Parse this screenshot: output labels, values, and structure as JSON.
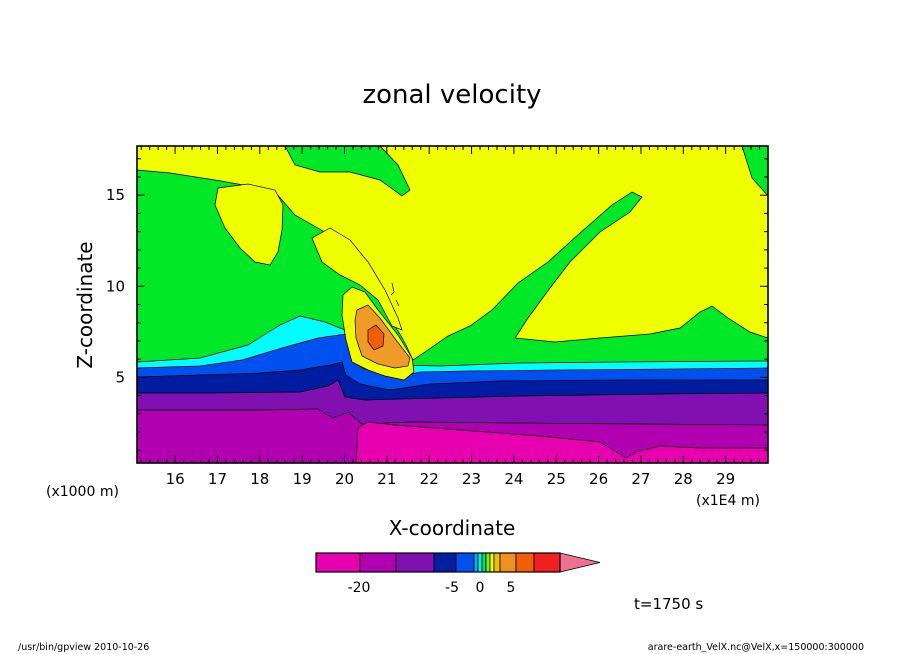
{
  "chart_data": {
    "type": "heatmap",
    "title": "zonal velocity",
    "xlabel": "X-coordinate",
    "ylabel": "Z-coordinate",
    "x_unit": "(x1E4  m)",
    "y_unit": "(x1000  m)",
    "xlim": [
      15.1,
      30.0
    ],
    "ylim": [
      0.3,
      17.7
    ],
    "x_ticks": [
      "16",
      "17",
      "18",
      "19",
      "20",
      "21",
      "22",
      "23",
      "24",
      "25",
      "26",
      "27",
      "28",
      "29"
    ],
    "y_ticks": [
      "5",
      "10",
      "15"
    ],
    "colorbar": {
      "tick_labels": [
        "-20",
        "-5",
        "0",
        "5"
      ],
      "colors": [
        "#e600b0",
        "#b000b0",
        "#8010b0",
        "#0020a0",
        "#0050f0",
        "#00b0f0",
        "#00f0f0",
        "#00e060",
        "#80f000",
        "#f0ff00",
        "#f0c000",
        "#f09020",
        "#f06000",
        "#f02020",
        "#f07090"
      ]
    },
    "field_colors": {
      "yellow": "#f0ff00",
      "green": "#00e828",
      "cyan": "#00ffff",
      "blue": "#0050f0",
      "navy": "#001ca0",
      "purple": "#8010b0",
      "violet": "#b000b0",
      "magenta": "#e600b0",
      "orange": "#f09a28",
      "dark_orange": "#f06000"
    },
    "annotation": "t=1750  s"
  },
  "footer": {
    "left": "/usr/bin/gpview   2010-10-26",
    "right": "arare-earth_VelX.nc@VelX,x=150000:300000"
  }
}
